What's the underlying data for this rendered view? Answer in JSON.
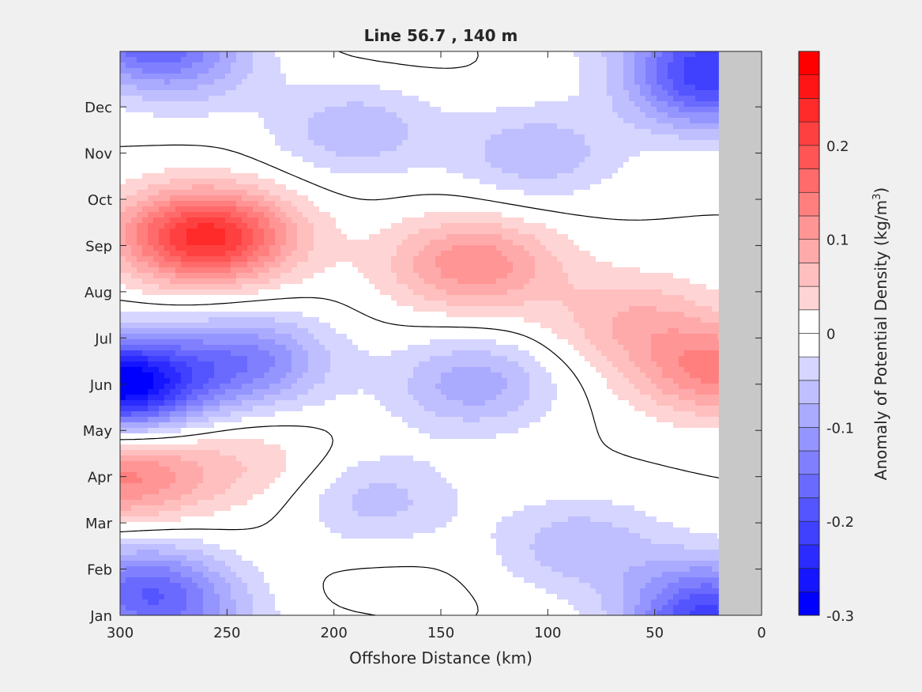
{
  "chart_data": {
    "type": "heatmap",
    "subtype": "filled-contour",
    "title": "Line 56.7 , 140 m",
    "xlabel": "Offshore Distance (km)",
    "xlim": [
      300,
      0
    ],
    "x_reversed": true,
    "x_ticks": [
      300,
      250,
      200,
      150,
      100,
      50,
      0
    ],
    "y_ticks": [
      "Jan",
      "Feb",
      "Mar",
      "Apr",
      "May",
      "Jun",
      "Jul",
      "Aug",
      "Sep",
      "Oct",
      "Nov",
      "Dec"
    ],
    "colorbar": {
      "label": "Anomaly of Potential Density (kg/m",
      "label_sup": "3",
      "label_close": ")",
      "range": [
        -0.3,
        0.3
      ],
      "contour_step": 0.025,
      "ticks": [
        -0.3,
        -0.2,
        -0.1,
        0,
        0.1,
        0.2
      ],
      "tick_labels": [
        "-0.3",
        "-0.2",
        "-0.1",
        "0",
        "0.1",
        "0.2"
      ],
      "colormap": "blue-white-red",
      "neg_color": "#0000ff",
      "pos_color": "#ff0000",
      "zero_color": "#ffffff"
    },
    "masked_region_km": [
      20,
      0
    ],
    "mask_color": "#c8c8c8",
    "zero_contour_color": "#000000",
    "features": [
      {
        "kind": "max",
        "x_km": 260,
        "month": 9.2,
        "value": 0.24
      },
      {
        "kind": "max",
        "x_km": 135,
        "month": 8.6,
        "value": 0.12
      },
      {
        "kind": "max",
        "x_km": 300,
        "month": 4.0,
        "value": 0.13
      },
      {
        "kind": "max",
        "x_km": 240,
        "month": 4.3,
        "value": 0.04
      },
      {
        "kind": "max",
        "x_km": 20,
        "month": 6.3,
        "value": 0.13
      },
      {
        "kind": "max",
        "x_km": 60,
        "month": 7.4,
        "value": 0.07
      },
      {
        "kind": "min",
        "x_km": 300,
        "month": 6.0,
        "value": -0.3
      },
      {
        "kind": "min",
        "x_km": 240,
        "month": 6.5,
        "value": -0.13
      },
      {
        "kind": "min",
        "x_km": 135,
        "month": 6.0,
        "value": -0.09
      },
      {
        "kind": "min",
        "x_km": 290,
        "month": 1.6,
        "value": -0.14
      },
      {
        "kind": "min",
        "x_km": 25,
        "month": 12.4,
        "value": -0.16
      },
      {
        "kind": "min",
        "x_km": 190,
        "month": 11.5,
        "value": -0.07
      },
      {
        "kind": "min",
        "x_km": 105,
        "month": 11.0,
        "value": -0.07
      },
      {
        "kind": "min",
        "x_km": 270,
        "month": 12.9,
        "value": -0.07
      },
      {
        "kind": "min",
        "x_km": 85,
        "month": 2.5,
        "value": -0.07
      },
      {
        "kind": "min",
        "x_km": 180,
        "month": 3.5,
        "value": -0.06
      },
      {
        "kind": "min",
        "x_km": 25,
        "month": 1.4,
        "value": -0.12
      },
      {
        "kind": "max",
        "x_km": 172,
        "month": 1.5,
        "value": 0.01
      }
    ]
  }
}
